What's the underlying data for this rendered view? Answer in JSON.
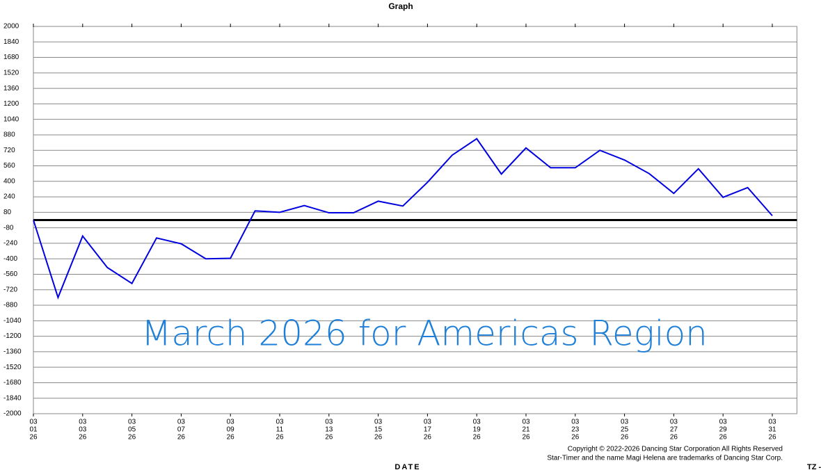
{
  "chart_data": {
    "type": "line",
    "title": "Graph",
    "annotation": "March 2026 for Americas Region",
    "x_label": "DATE",
    "tz_label": "TZ -",
    "footer": [
      "Copyright © 2022-2026 Dancing Star Corporation All Rights Reserved",
      "Star-Timer and the name Magi Helena are trademarks of Dancing Star Corp."
    ],
    "categories": [
      [
        "03",
        "01",
        "26"
      ],
      null,
      [
        "03",
        "03",
        "26"
      ],
      null,
      [
        "03",
        "05",
        "26"
      ],
      null,
      [
        "03",
        "07",
        "26"
      ],
      null,
      [
        "03",
        "09",
        "26"
      ],
      null,
      [
        "03",
        "11",
        "26"
      ],
      null,
      [
        "03",
        "13",
        "26"
      ],
      null,
      [
        "03",
        "15",
        "26"
      ],
      null,
      [
        "03",
        "17",
        "26"
      ],
      null,
      [
        "03",
        "19",
        "26"
      ],
      null,
      [
        "03",
        "21",
        "26"
      ],
      null,
      [
        "03",
        "23",
        "26"
      ],
      null,
      [
        "03",
        "25",
        "26"
      ],
      null,
      [
        "03",
        "27",
        "26"
      ],
      null,
      [
        "03",
        "29",
        "26"
      ],
      null,
      [
        "03",
        "31",
        "26"
      ]
    ],
    "series": [
      {
        "color": "#0000e0",
        "values": [
          0,
          -800,
          -165,
          -490,
          -655,
          -185,
          -245,
          -400,
          -395,
          95,
          80,
          150,
          75,
          75,
          195,
          145,
          390,
          670,
          840,
          475,
          745,
          540,
          540,
          720,
          620,
          480,
          275,
          530,
          235,
          335,
          45
        ]
      }
    ],
    "ylim": [
      -2000,
      2000
    ],
    "yticks": [
      -2000,
      -1840,
      -1680,
      -1520,
      -1360,
      -1200,
      -1040,
      -880,
      -720,
      -560,
      -400,
      -240,
      -80,
      80,
      240,
      400,
      560,
      720,
      880,
      1040,
      1200,
      1360,
      1520,
      1680,
      1840,
      2000
    ],
    "grid": true,
    "zero_line": true
  }
}
